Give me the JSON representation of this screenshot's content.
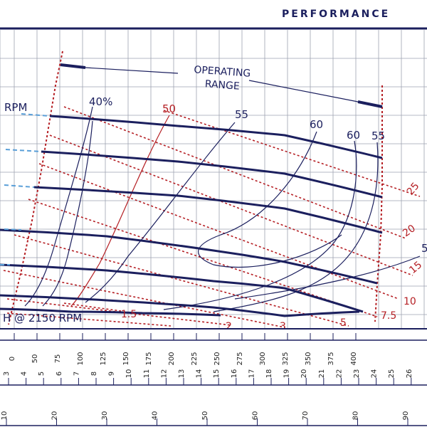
{
  "header": {
    "title": "PERFORMANCE"
  },
  "colors": {
    "navy": "#1b1f5e",
    "red": "#b51f24",
    "blue_dash": "#5a9fd8",
    "grid": "#9ea3b0"
  },
  "chart_data": {
    "type": "line",
    "title": "PERFORMANCE",
    "operating_range_label": "OPERATING RANGE",
    "rpm_label": "RPM",
    "bottom_label": "H @ 2150 RPM",
    "axes": [
      {
        "name": "flow_primary",
        "ticks": [
          "0",
          "50",
          "75",
          "100",
          "125",
          "150",
          "175",
          "200",
          "225",
          "250",
          "275",
          "300",
          "325",
          "350",
          "375",
          "400"
        ]
      },
      {
        "name": "flow_secondary",
        "ticks": [
          "3",
          "4",
          "5",
          "6",
          "7",
          "8",
          "9",
          "10",
          "11",
          "12",
          "13",
          "14",
          "15",
          "16",
          "17",
          "18",
          "19",
          "20",
          "21",
          "22",
          "23",
          "24",
          "25",
          "26"
        ]
      },
      {
        "name": "flow_tertiary",
        "ticks": [
          "10",
          "20",
          "30",
          "40",
          "50",
          "60",
          "70",
          "80",
          "90"
        ]
      }
    ],
    "head_curves": [
      {
        "name": "curve-1",
        "points": [
          [
            70,
            163
          ],
          [
            250,
            177
          ],
          [
            400,
            190
          ],
          [
            537,
            222
          ]
        ]
      },
      {
        "name": "curve-2",
        "points": [
          [
            58,
            213
          ],
          [
            250,
            227
          ],
          [
            400,
            244
          ],
          [
            537,
            277
          ]
        ]
      },
      {
        "name": "curve-3",
        "points": [
          [
            48,
            263
          ],
          [
            250,
            275
          ],
          [
            400,
            293
          ],
          [
            537,
            327
          ]
        ]
      },
      {
        "name": "curve-4",
        "points": [
          [
            0,
            323
          ],
          [
            150,
            332
          ],
          [
            300,
            352
          ],
          [
            400,
            368
          ],
          [
            530,
            398
          ]
        ]
      },
      {
        "name": "curve-5",
        "points": [
          [
            0,
            372
          ],
          [
            150,
            380
          ],
          [
            300,
            395
          ],
          [
            400,
            405
          ],
          [
            510,
            438
          ]
        ]
      },
      {
        "name": "curve-6",
        "points": [
          [
            0,
            415
          ],
          [
            150,
            422
          ],
          [
            300,
            432
          ],
          [
            400,
            444
          ],
          [
            505,
            438
          ]
        ]
      },
      {
        "name": "curve-7",
        "points": [
          [
            0,
            434
          ],
          [
            100,
            438
          ],
          [
            200,
            440
          ],
          [
            310,
            443
          ]
        ]
      }
    ],
    "efficiency_labels": [
      "40%",
      "50",
      "55",
      "60",
      "60",
      "55",
      "5"
    ],
    "npsh_labels": [
      "1.5",
      "2",
      "3",
      "5",
      "7.5",
      "10",
      "15",
      "20",
      "25"
    ]
  }
}
